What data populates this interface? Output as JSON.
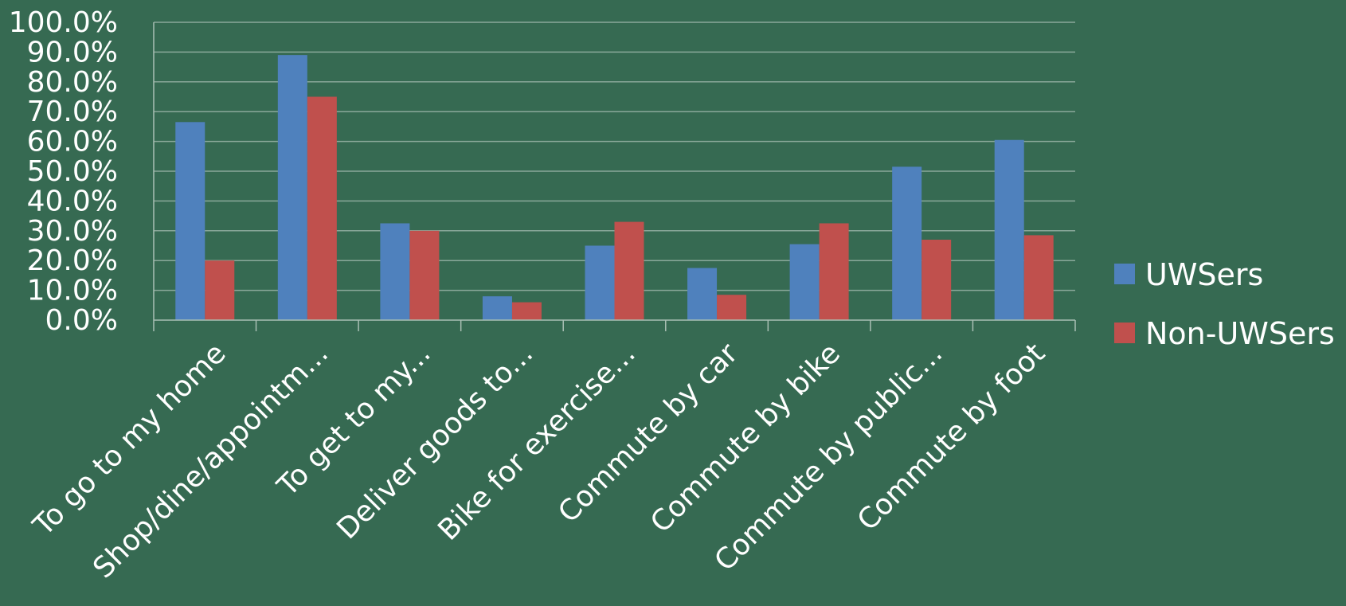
{
  "colors": {
    "background": "#366a52",
    "gridline": "#8aa89a",
    "axis": "#a9bfb4",
    "text": "#ffffff"
  },
  "chart_data": {
    "type": "bar",
    "title": "",
    "xlabel": "",
    "ylabel": "",
    "ylim": [
      0,
      100
    ],
    "y_ticks": [
      "0.0%",
      "10.0%",
      "20.0%",
      "30.0%",
      "40.0%",
      "50.0%",
      "60.0%",
      "70.0%",
      "80.0%",
      "90.0%",
      "100.0%"
    ],
    "grid": true,
    "legend_position": "right",
    "categories": [
      "To go to my home",
      "Shop/dine/appointm...",
      "To get to my...",
      "Deliver goods to...",
      "Bike for exercise...",
      "Commute by car",
      "Commute by bike",
      "Commute by public...",
      "Commute by foot"
    ],
    "series": [
      {
        "name": "UWSers",
        "color": "#4f81bd",
        "values": [
          66.5,
          89.0,
          32.5,
          8.0,
          25.0,
          17.5,
          25.5,
          51.5,
          60.5
        ]
      },
      {
        "name": "Non-UWSers",
        "color": "#c0504d",
        "values": [
          20.0,
          75.0,
          30.0,
          6.0,
          33.0,
          8.5,
          32.5,
          27.0,
          28.5
        ]
      }
    ]
  }
}
